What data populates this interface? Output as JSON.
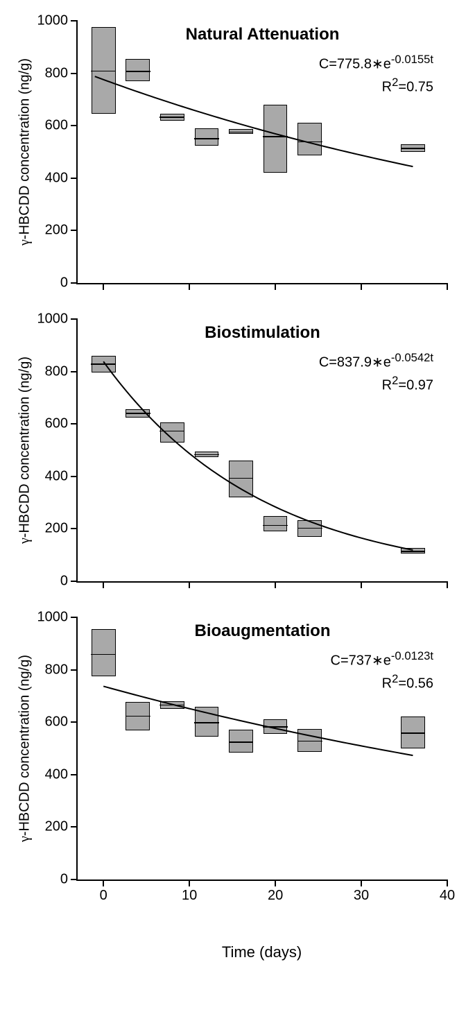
{
  "xaxis": {
    "label": "Time (days)",
    "min": -3,
    "max": 40,
    "ticks": [
      0,
      10,
      20,
      30,
      40
    ]
  },
  "yaxis": {
    "label_prefix": "γ",
    "label_main": "-HBCDD concentration (ng/g)",
    "min": 0,
    "max": 1000,
    "ticks": [
      0,
      200,
      400,
      600,
      800,
      1000
    ]
  },
  "box_halfwidth": 1.4,
  "box_color": "#a9a9a9",
  "border_color": "#000000",
  "curve_width": 2,
  "panels": [
    {
      "title": "Natural Attenuation",
      "equation": "C=775.8∗e^{-0.0155t}",
      "r2": "R²=0.75",
      "curve_A": 775.8,
      "curve_k": 0.0155,
      "curve_xstart": -1,
      "curve_xend": 36,
      "boxes": [
        {
          "x": 0,
          "low": 645,
          "med": 810,
          "high": 975
        },
        {
          "x": 4,
          "low": 770,
          "med": 808,
          "high": 855
        },
        {
          "x": 8,
          "low": 620,
          "med": 635,
          "high": 645
        },
        {
          "x": 12,
          "low": 525,
          "med": 552,
          "high": 590
        },
        {
          "x": 16,
          "low": 570,
          "med": 578,
          "high": 586
        },
        {
          "x": 20,
          "low": 420,
          "med": 560,
          "high": 680
        },
        {
          "x": 24,
          "low": 487,
          "med": 540,
          "high": 610
        },
        {
          "x": 36,
          "low": 500,
          "med": 515,
          "high": 528
        }
      ]
    },
    {
      "title": "Biostimulation",
      "equation": "C=837.9∗e^{-0.0542t}",
      "r2": "R²=0.97",
      "curve_A": 837.9,
      "curve_k": 0.0542,
      "curve_xstart": 0,
      "curve_xend": 36,
      "boxes": [
        {
          "x": 0,
          "low": 795,
          "med": 830,
          "high": 860
        },
        {
          "x": 4,
          "low": 625,
          "med": 642,
          "high": 656
        },
        {
          "x": 8,
          "low": 530,
          "med": 575,
          "high": 605
        },
        {
          "x": 12,
          "low": 473,
          "med": 485,
          "high": 496
        },
        {
          "x": 16,
          "low": 320,
          "med": 395,
          "high": 460
        },
        {
          "x": 20,
          "low": 190,
          "med": 214,
          "high": 250
        },
        {
          "x": 24,
          "low": 170,
          "med": 205,
          "high": 232
        },
        {
          "x": 36,
          "low": 105,
          "med": 115,
          "high": 128
        }
      ]
    },
    {
      "title": "Bioaugmentation",
      "equation": "C=737∗e^{-0.0123t}",
      "r2": "R²=0.56",
      "curve_A": 737,
      "curve_k": 0.0123,
      "curve_xstart": 0,
      "curve_xend": 36,
      "boxes": [
        {
          "x": 0,
          "low": 775,
          "med": 860,
          "high": 955
        },
        {
          "x": 4,
          "low": 570,
          "med": 625,
          "high": 678
        },
        {
          "x": 8,
          "low": 650,
          "med": 668,
          "high": 680
        },
        {
          "x": 12,
          "low": 545,
          "med": 600,
          "high": 660
        },
        {
          "x": 16,
          "low": 483,
          "med": 525,
          "high": 572
        },
        {
          "x": 20,
          "low": 555,
          "med": 584,
          "high": 610
        },
        {
          "x": 24,
          "low": 487,
          "med": 530,
          "high": 575
        },
        {
          "x": 36,
          "low": 500,
          "med": 560,
          "high": 623
        }
      ]
    }
  ]
}
